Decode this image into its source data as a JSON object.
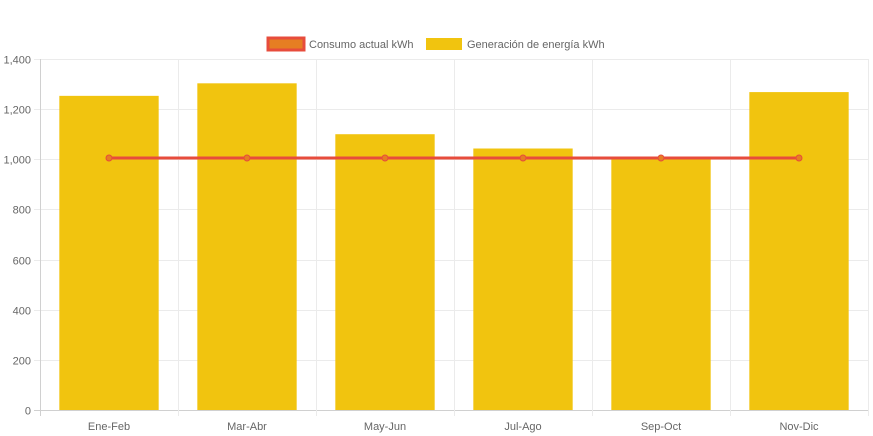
{
  "chart_data": {
    "type": "bar",
    "title": "",
    "xlabel": "",
    "ylabel": "",
    "categories": [
      "Ene-Feb",
      "Mar-Abr",
      "May-Jun",
      "Jul-Ago",
      "Sep-Oct",
      "Nov-Dic"
    ],
    "ylim": [
      0,
      1400
    ],
    "yticks": [
      "0",
      "200",
      "400",
      "600",
      "800",
      "1,000",
      "1,200",
      "1,400"
    ],
    "grid": true,
    "legend_position": "top-center",
    "series": [
      {
        "name": "Consumo actual kWh",
        "kind": "line",
        "color": "#e74c3c",
        "point_fill": "#e67e22",
        "values": [
          1005,
          1005,
          1005,
          1005,
          1005,
          1005
        ]
      },
      {
        "name": "Generación de energía kWh",
        "kind": "bar",
        "color": "#f1c40f",
        "values": [
          1253,
          1303,
          1100,
          1043,
          1005,
          1268
        ]
      }
    ]
  }
}
